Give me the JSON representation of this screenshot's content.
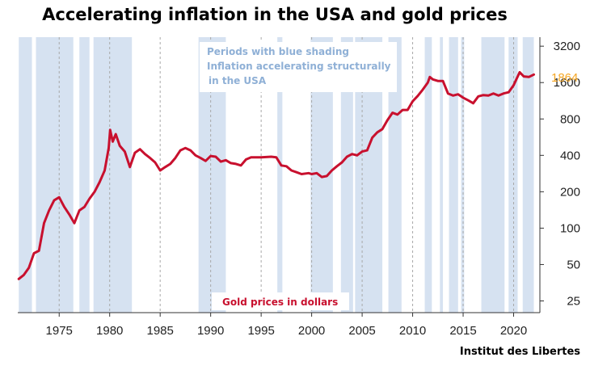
{
  "title": "Accelerating inflation in the USA and gold prices",
  "source": "Institut des Libertes",
  "colors": {
    "gold_line": "#c8102e",
    "shading": "#d6e2f1",
    "annotation": "#8fb0d6",
    "last_value": "#f5a623"
  },
  "chart_data": {
    "type": "line",
    "title": "Accelerating inflation in the USA and gold prices",
    "xlabel": "",
    "ylabel": "",
    "y_scale": "log",
    "xlim": [
      1970.9,
      2022.6
    ],
    "ylim": [
      20,
      3800
    ],
    "x_ticks": [
      1975,
      1980,
      1985,
      1990,
      1995,
      2000,
      2005,
      2010,
      2015,
      2020
    ],
    "y_ticks": [
      25,
      50,
      100,
      200,
      400,
      800,
      1600,
      3200
    ],
    "annotations": {
      "shading_note": [
        "Periods with blue shading",
        "Inflation accelerating structurally",
        "in the USA"
      ],
      "series_label": "Gold prices in dollars",
      "last_value": "1864"
    },
    "shaded_periods": [
      [
        1971.0,
        1972.3
      ],
      [
        1972.7,
        1976.4
      ],
      [
        1977.0,
        1978.0
      ],
      [
        1978.4,
        1982.2
      ],
      [
        1988.8,
        1991.5
      ],
      [
        1996.6,
        1997.1
      ],
      [
        1999.9,
        2002.1
      ],
      [
        2002.9,
        2004.1
      ],
      [
        2004.3,
        2007.0
      ],
      [
        2007.6,
        2008.9
      ],
      [
        2011.2,
        2011.9
      ],
      [
        2012.7,
        2013.0
      ],
      [
        2013.6,
        2014.5
      ],
      [
        2014.8,
        2015.1
      ],
      [
        2016.8,
        2019.1
      ],
      [
        2019.5,
        2020.4
      ],
      [
        2020.9,
        2022.0
      ]
    ],
    "series": [
      {
        "name": "Gold prices in dollars",
        "x": [
          1971.0,
          1971.5,
          1972.0,
          1972.5,
          1973.0,
          1973.5,
          1974.0,
          1974.5,
          1975.0,
          1975.5,
          1976.0,
          1976.5,
          1977.0,
          1977.5,
          1978.0,
          1978.5,
          1979.0,
          1979.5,
          1979.9,
          1980.05,
          1980.3,
          1980.6,
          1981.0,
          1981.5,
          1982.0,
          1982.5,
          1983.0,
          1983.5,
          1984.0,
          1984.5,
          1985.0,
          1985.5,
          1986.0,
          1986.5,
          1987.0,
          1987.5,
          1988.0,
          1988.5,
          1989.0,
          1989.5,
          1990.0,
          1990.5,
          1991.0,
          1991.5,
          1992.0,
          1992.5,
          1993.0,
          1993.5,
          1994.0,
          1995.0,
          1996.0,
          1996.5,
          1997.0,
          1997.5,
          1998.0,
          1998.5,
          1999.0,
          1999.7,
          2000.0,
          2000.5,
          2001.0,
          2001.5,
          2002.0,
          2002.5,
          2003.0,
          2003.5,
          2004.0,
          2004.5,
          2005.0,
          2005.5,
          2006.0,
          2006.5,
          2007.0,
          2007.5,
          2008.0,
          2008.5,
          2009.0,
          2009.5,
          2010.0,
          2010.5,
          2011.0,
          2011.5,
          2011.7,
          2012.0,
          2012.5,
          2013.0,
          2013.5,
          2014.0,
          2014.5,
          2015.0,
          2015.5,
          2016.0,
          2016.5,
          2017.0,
          2017.5,
          2018.0,
          2018.5,
          2019.0,
          2019.5,
          2020.0,
          2020.6,
          2021.0,
          2021.5,
          2022.0
        ],
        "y": [
          38,
          41,
          47,
          62,
          65,
          110,
          140,
          170,
          180,
          150,
          130,
          110,
          140,
          150,
          175,
          200,
          240,
          300,
          460,
          650,
          520,
          600,
          480,
          430,
          320,
          420,
          450,
          410,
          380,
          350,
          300,
          320,
          340,
          380,
          440,
          460,
          440,
          400,
          380,
          360,
          395,
          390,
          355,
          365,
          345,
          340,
          330,
          370,
          385,
          385,
          390,
          385,
          330,
          325,
          300,
          290,
          280,
          285,
          280,
          285,
          265,
          270,
          300,
          325,
          350,
          390,
          410,
          400,
          430,
          440,
          560,
          620,
          660,
          780,
          900,
          870,
          950,
          950,
          1120,
          1240,
          1400,
          1600,
          1780,
          1700,
          1650,
          1650,
          1300,
          1250,
          1280,
          1200,
          1140,
          1080,
          1230,
          1260,
          1250,
          1300,
          1250,
          1300,
          1330,
          1520,
          1950,
          1800,
          1780,
          1864
        ]
      }
    ]
  }
}
